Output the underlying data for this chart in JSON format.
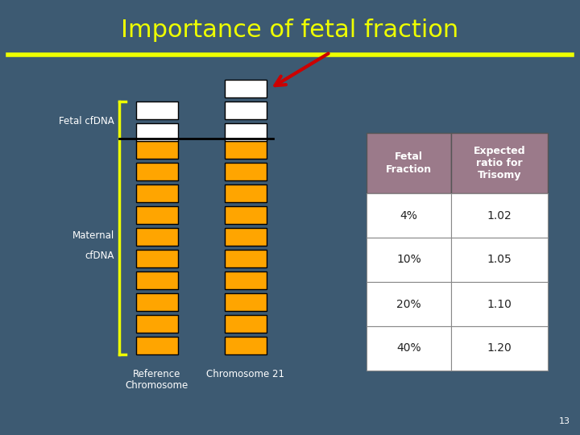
{
  "title": "Importance of fetal fraction",
  "title_color": "#EEFF00",
  "title_fontsize": 22,
  "bg_color": "#3d5a72",
  "yellow_line_color": "#EEFF00",
  "bar_white": "#FFFFFF",
  "bar_orange": "#FFA500",
  "fetal_label": "Fetal cfDNA",
  "maternal_label": "Maternal",
  "cfdna_label": "cfDNA",
  "arrow_color": "#CC0000",
  "table_header_bg": "#9B7A8A",
  "table_col1_header": "Fetal\nFraction",
  "table_col2_header": "Expected\nratio for\nTrisomy",
  "table_rows": [
    [
      "4%",
      "1.02"
    ],
    [
      "10%",
      "1.05"
    ],
    [
      "20%",
      "1.10"
    ],
    [
      "40%",
      "1.20"
    ]
  ],
  "page_number": "13",
  "ref_white_count": 2,
  "ref_orange_count": 10,
  "chr_white_count": 3,
  "chr_orange_count": 10
}
